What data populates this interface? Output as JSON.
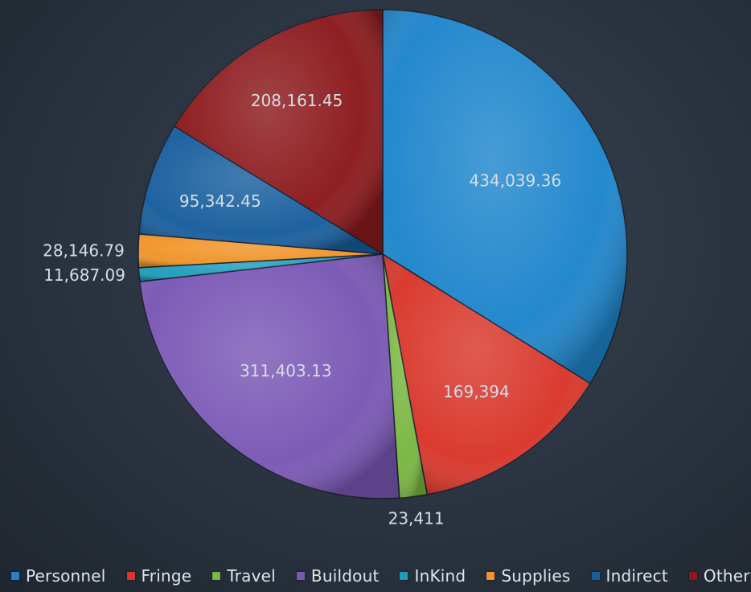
{
  "chart_data": {
    "type": "pie",
    "title": "",
    "legend_position": "bottom",
    "slices": [
      {
        "name": "Personnel",
        "value": 434039.36,
        "label": "434,039.36",
        "color": "#1f86cc"
      },
      {
        "name": "Fringe",
        "value": 169394,
        "label": "169,394",
        "color": "#d9372b"
      },
      {
        "name": "Travel",
        "value": 23411,
        "label": "23,411",
        "color": "#7ab642"
      },
      {
        "name": "Buildout",
        "value": 311403.13,
        "label": "311,403.13",
        "color": "#7a58b5"
      },
      {
        "name": "InKind",
        "value": 11687.09,
        "label": "11,687.09",
        "color": "#1f9dbd"
      },
      {
        "name": "Supplies",
        "value": 28146.79,
        "label": "28,146.79",
        "color": "#f0952a"
      },
      {
        "name": "Indirect",
        "value": 95342.45,
        "label": "95,342.45",
        "color": "#195f9e"
      },
      {
        "name": "Other",
        "value": 208161.45,
        "label": "208,161.45",
        "color": "#8c1a1d"
      }
    ]
  }
}
